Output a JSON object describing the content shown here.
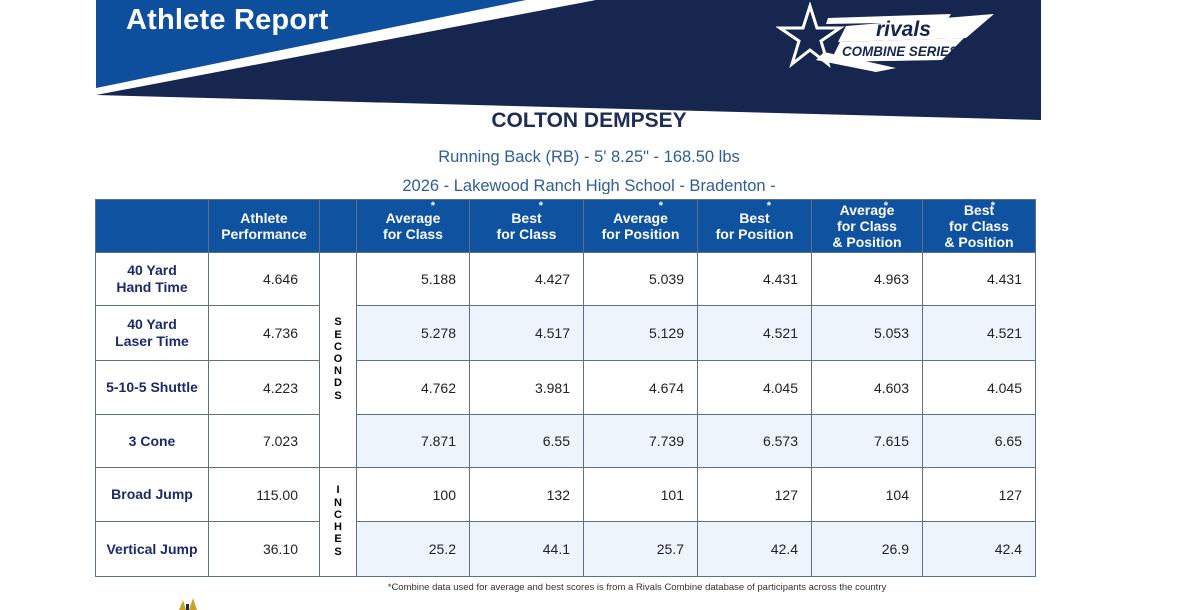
{
  "header": {
    "title": "Athlete Report",
    "logo_text_top": "rivals",
    "logo_text_bottom": "COMBINE SERIES",
    "colors": {
      "dark_navy": "#16264f",
      "blue": "#0e4f9d",
      "white": "#ffffff"
    }
  },
  "athlete": {
    "name": "COLTON DEMPSEY",
    "details": "Running Back (RB) -  5' 8.25\" - 168.50 lbs",
    "school_line": "2026 - Lakewood Ranch High School - Bradenton -"
  },
  "table": {
    "columns": [
      {
        "label": "Athlete\nPerformance",
        "star": false
      },
      {
        "label": "",
        "star": false
      },
      {
        "label": "Average\nfor Class",
        "star": true
      },
      {
        "label": "Best\nfor Class",
        "star": true
      },
      {
        "label": "Average\nfor Position",
        "star": true
      },
      {
        "label": "Best\nfor Position",
        "star": true
      },
      {
        "label": "Average\nfor Class\n& Position",
        "star": true
      },
      {
        "label": "Best\nfor Class\n& Position",
        "star": true
      }
    ],
    "unit_groups": {
      "seconds": "S\nE\nC\nO\nN\nD\nS",
      "inches": "I\nN\nC\nH\nE\nS"
    },
    "rows": [
      {
        "label": "40 Yard\nHand Time",
        "athlete": "4.646",
        "values": [
          "5.188",
          "4.427",
          "5.039",
          "4.431",
          "4.963",
          "4.431"
        ]
      },
      {
        "label": "40 Yard\nLaser Time",
        "athlete": "4.736",
        "values": [
          "5.278",
          "4.517",
          "5.129",
          "4.521",
          "5.053",
          "4.521"
        ]
      },
      {
        "label": "5-10-5 Shuttle",
        "athlete": "4.223",
        "values": [
          "4.762",
          "3.981",
          "4.674",
          "4.045",
          "4.603",
          "4.045"
        ]
      },
      {
        "label": "3 Cone",
        "athlete": "7.023",
        "values": [
          "7.871",
          "6.55",
          "7.739",
          "6.573",
          "7.615",
          "6.65"
        ]
      },
      {
        "label": "Broad Jump",
        "athlete": "115.00",
        "values": [
          "100",
          "132",
          "101",
          "127",
          "104",
          "127"
        ]
      },
      {
        "label": "Vertical Jump",
        "athlete": "36.10",
        "values": [
          "25.2",
          "44.1",
          "25.7",
          "42.4",
          "26.9",
          "42.4"
        ]
      }
    ]
  },
  "footnote": "*Combine data used for average and best scores is from a Rivals Combine database of participants across the country"
}
